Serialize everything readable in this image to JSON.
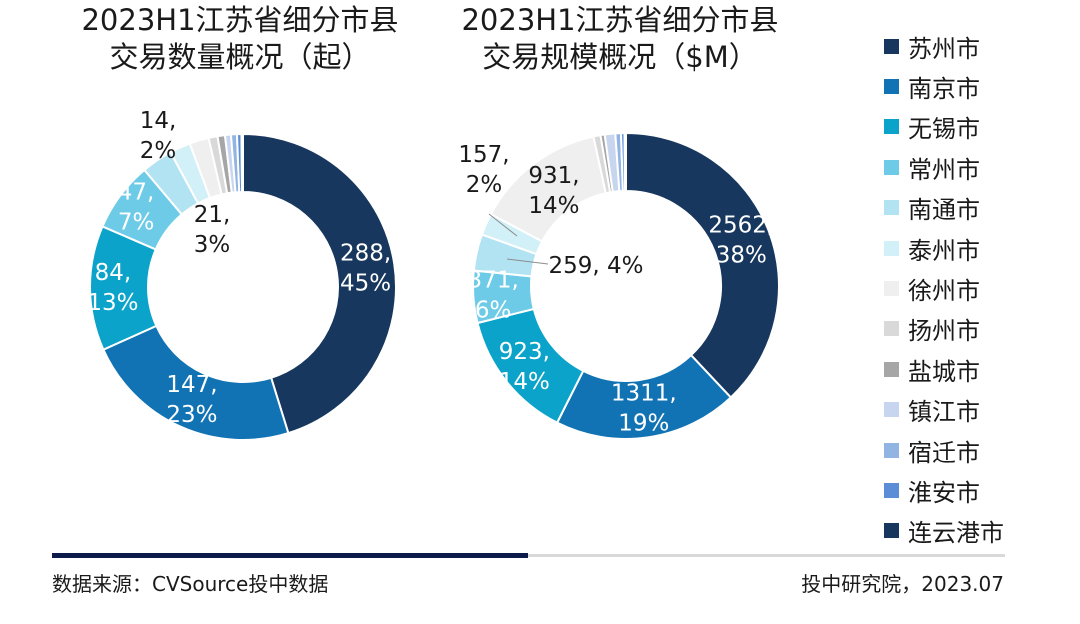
{
  "chart_data": [
    {
      "type": "donut",
      "title_lines": [
        "2023H1江苏省细分市县",
        "交易数量概况（起）"
      ],
      "categories": [
        "苏州市",
        "南京市",
        "无锡市",
        "常州市",
        "南通市",
        "泰州市",
        "徐州市",
        "扬州市",
        "盐城市",
        "镇江市",
        "宿迁市",
        "淮安市",
        "连云港市"
      ],
      "values": [
        288,
        147,
        84,
        47,
        21,
        14,
        13,
        6,
        5,
        4,
        4,
        3,
        1
      ],
      "labels": [
        {
          "category": "苏州市",
          "lines": [
            "288,",
            "45%"
          ]
        },
        {
          "category": "南京市",
          "lines": [
            "147,",
            "23%"
          ]
        },
        {
          "category": "无锡市",
          "lines": [
            "84,",
            "13%"
          ]
        },
        {
          "category": "常州市",
          "lines": [
            "47,",
            "7%"
          ]
        },
        {
          "category": "南通市",
          "lines": [
            "21,",
            "3%"
          ]
        },
        {
          "category": "泰州市",
          "lines": [
            "14,",
            "2%"
          ]
        }
      ]
    },
    {
      "type": "donut",
      "title_lines": [
        "2023H1江苏省细分市县",
        "交易规模概况（$M）"
      ],
      "categories": [
        "苏州市",
        "南京市",
        "无锡市",
        "常州市",
        "南通市",
        "泰州市",
        "徐州市",
        "扬州市",
        "盐城市",
        "镇江市",
        "宿迁市",
        "淮安市",
        "连云港市"
      ],
      "values": [
        2562,
        1311,
        923,
        371,
        259,
        157,
        931,
        50,
        30,
        75,
        40,
        25,
        10
      ],
      "labels": [
        {
          "category": "苏州市",
          "lines": [
            "2562,",
            "38%"
          ]
        },
        {
          "category": "南京市",
          "lines": [
            "1311,",
            "19%"
          ]
        },
        {
          "category": "无锡市",
          "lines": [
            "923,",
            "14%"
          ]
        },
        {
          "category": "常州市",
          "lines": [
            "371,",
            "6%"
          ]
        },
        {
          "category": "南通市",
          "lines": [
            "259, 4%"
          ]
        },
        {
          "category": "泰州市",
          "lines": [
            "157,",
            "2%"
          ]
        },
        {
          "category": "徐州市",
          "lines": [
            "931,",
            "14%"
          ]
        }
      ]
    }
  ],
  "legend": {
    "items": [
      "苏州市",
      "南京市",
      "无锡市",
      "常州市",
      "南通市",
      "泰州市",
      "徐州市",
      "扬州市",
      "盐城市",
      "镇江市",
      "宿迁市",
      "淮安市",
      "连云港市"
    ]
  },
  "colors": [
    "#17375e",
    "#1173b4",
    "#0ba3c9",
    "#6dcbe8",
    "#b2e3f2",
    "#d2f0f7",
    "#efefef",
    "#d9d9d9",
    "#a6a6a6",
    "#c7d6ee",
    "#92b4e3",
    "#5b8ed6",
    "#17375e"
  ],
  "footer": {
    "source": "数据来源：CVSource投中数据",
    "org": "投中研究院，2023.07"
  }
}
